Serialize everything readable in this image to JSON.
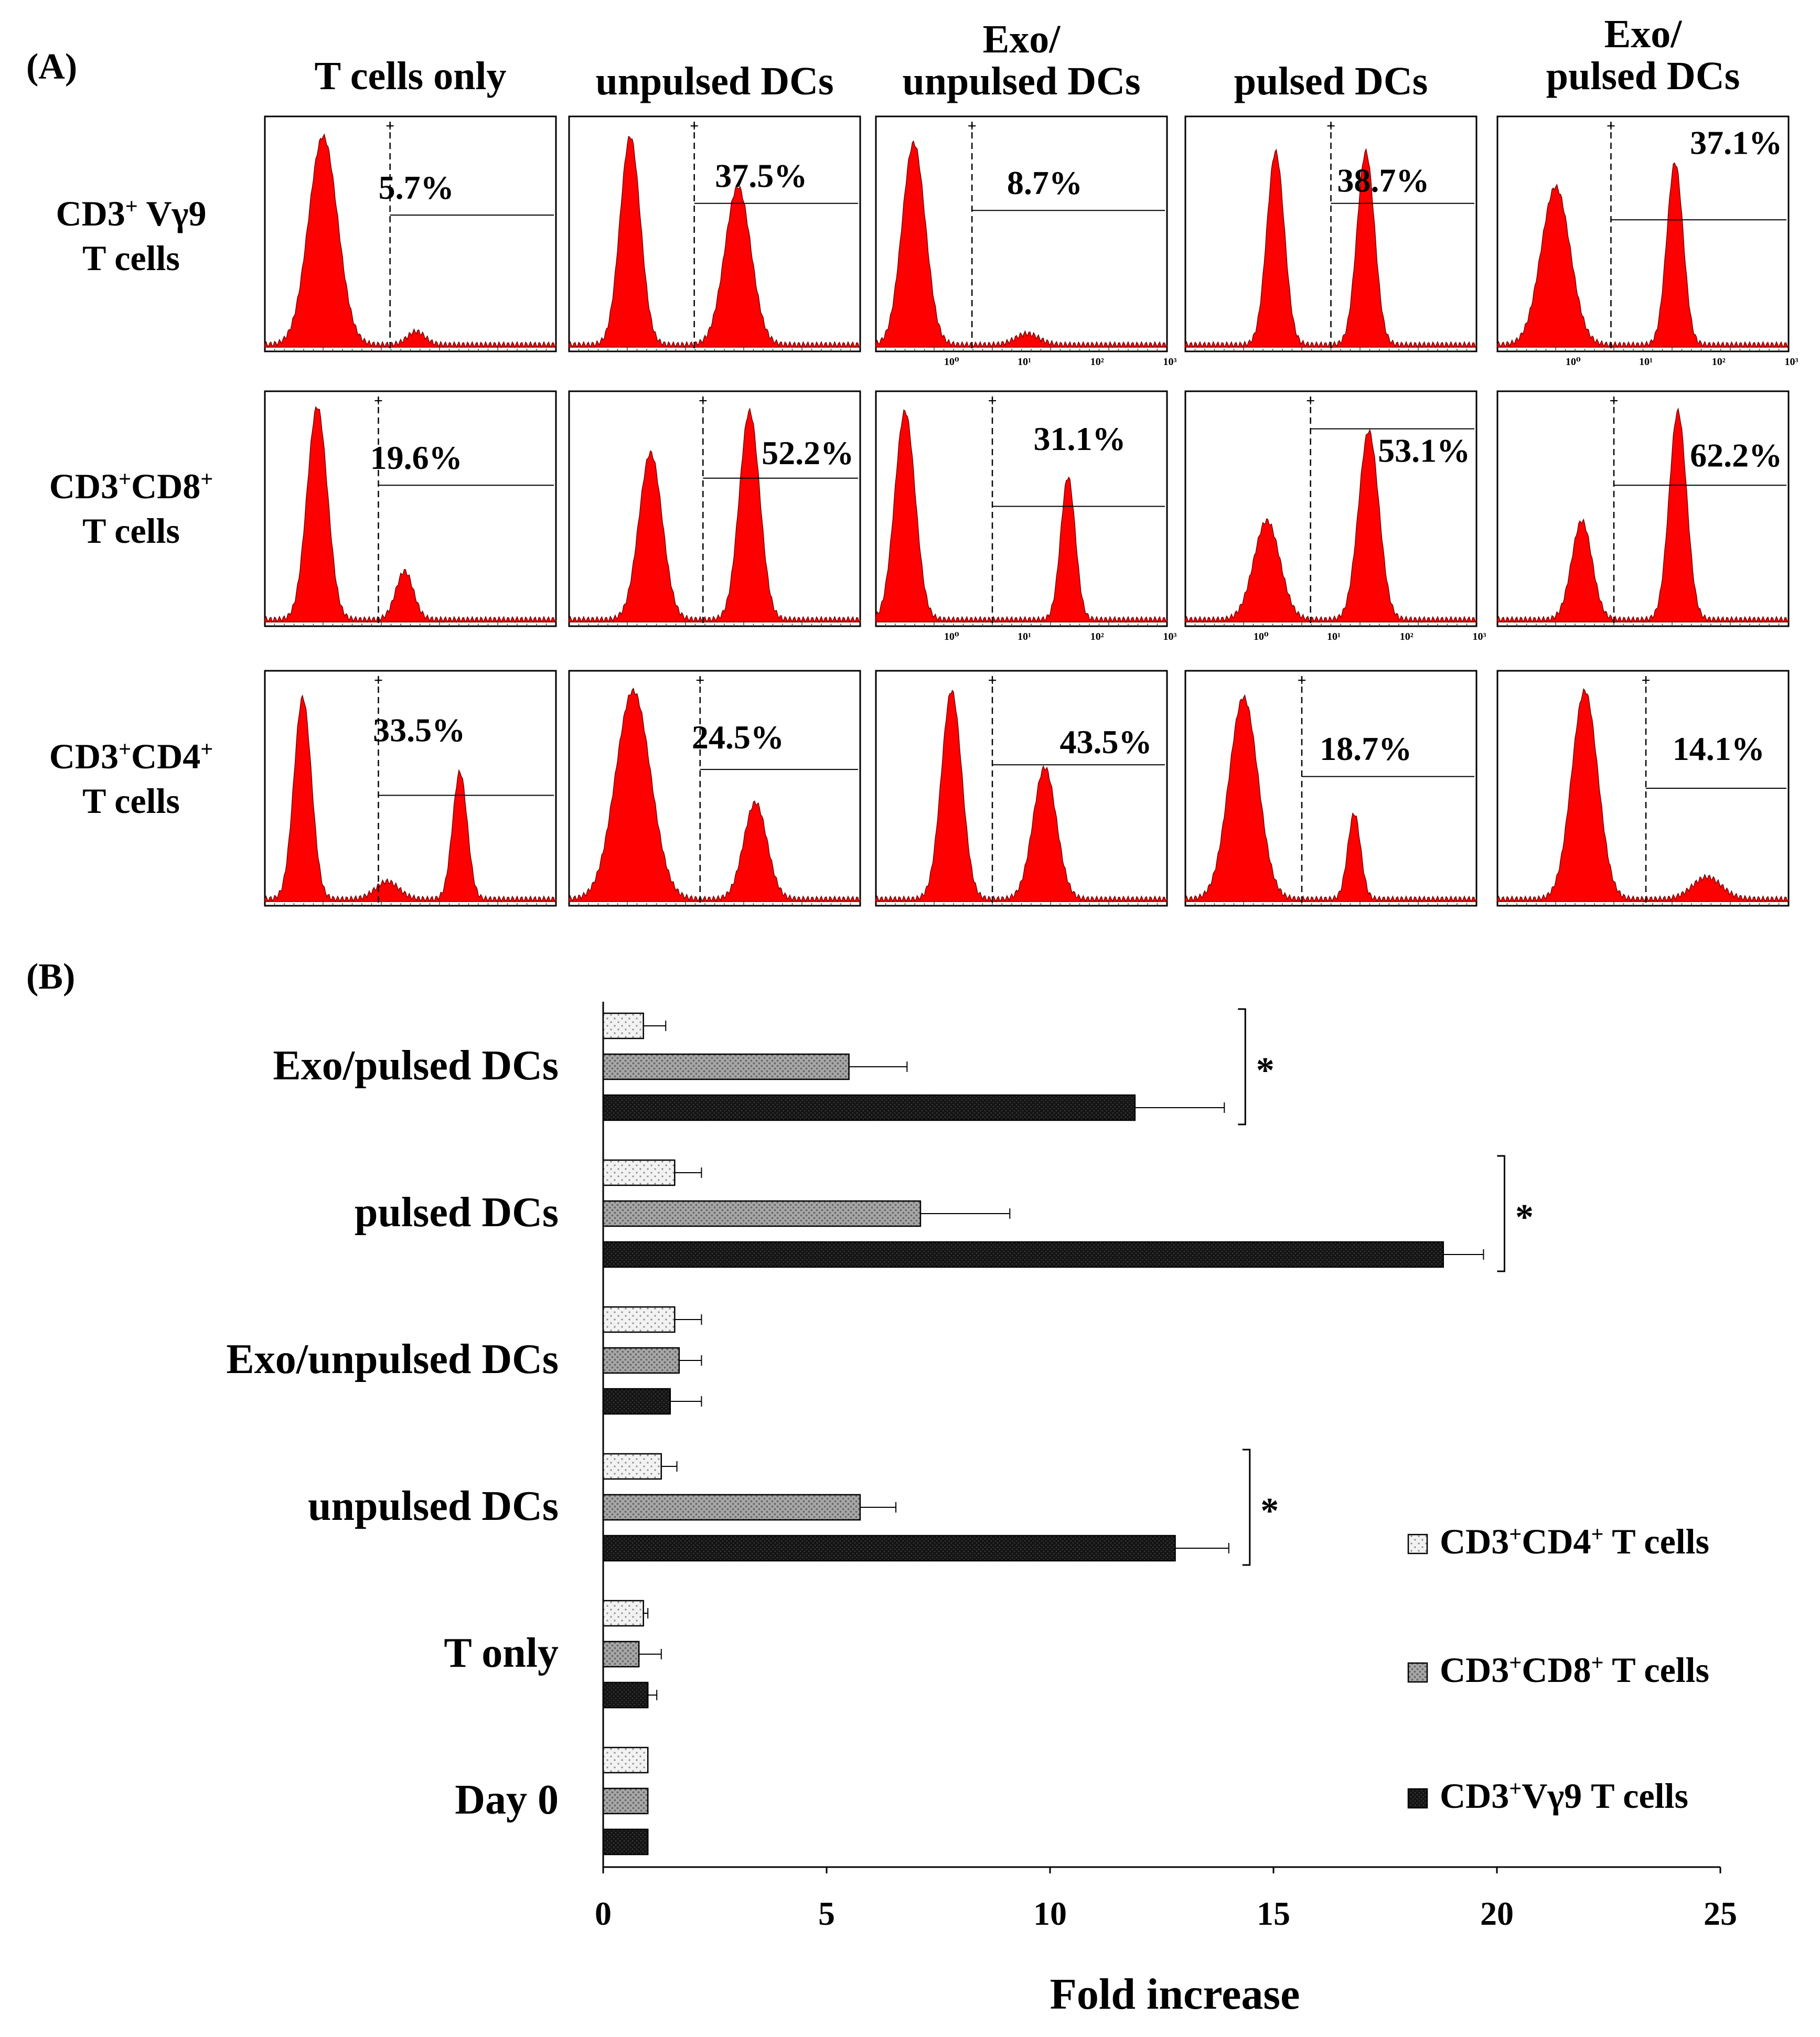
{
  "panel_a": {
    "label": "(A)",
    "columns": [
      "T cells only",
      "unpulsed DCs",
      "Exo/\nunpulsed DCs",
      "pulsed DCs",
      "Exo/\npulsed DCs"
    ],
    "rows": [
      {
        "label": "CD3+ Vγ9\nT cells",
        "percents": [
          "5.7%",
          "37.5%",
          "8.7%",
          "38.7%",
          "37.1%"
        ]
      },
      {
        "label": "CD3+CD8+\nT cells",
        "percents": [
          "19.6%",
          "52.2%",
          "31.1%",
          "53.1%",
          "62.2%"
        ]
      },
      {
        "label": "CD3+CD4+\nT cells",
        "percents": [
          "33.5%",
          "24.5%",
          "43.5%",
          "18.7%",
          "14.1%"
        ]
      }
    ],
    "histogram_color": "#ff0000",
    "axis_tick_labels": [
      "10⁰",
      "10¹",
      "10²",
      "10³"
    ]
  },
  "chart_data": {
    "type": "bar",
    "orientation": "horizontal",
    "panel_label": "(B)",
    "title": "",
    "xlabel": "Fold increase",
    "ylabel": "",
    "xlim": [
      0,
      25
    ],
    "xticks": [
      0,
      5,
      10,
      15,
      20,
      25
    ],
    "categories": [
      "Exo/pulsed DCs",
      "pulsed DCs",
      "Exo/unpulsed DCs",
      "unpulsed DCs",
      "T only",
      "Day 0"
    ],
    "series": [
      {
        "name": "CD3+CD4+ T cells",
        "pattern": "light-dots",
        "values": [
          0.9,
          1.6,
          1.6,
          1.3,
          0.9,
          1.0
        ],
        "errors": [
          0.5,
          0.6,
          0.6,
          0.35,
          0.1,
          0.0
        ]
      },
      {
        "name": "CD3+CD8+ T cells",
        "pattern": "grey",
        "values": [
          5.5,
          7.1,
          1.7,
          5.75,
          0.8,
          1.0
        ],
        "errors": [
          1.3,
          2.0,
          0.5,
          0.8,
          0.5,
          0.0
        ]
      },
      {
        "name": "CD3+Vγ9 T cells",
        "pattern": "black",
        "values": [
          11.9,
          18.8,
          1.5,
          12.8,
          1.0,
          1.0
        ],
        "errors": [
          2.0,
          0.9,
          0.7,
          1.2,
          0.2,
          0.0
        ]
      }
    ],
    "significance": [
      {
        "category": "Exo/pulsed DCs",
        "mark": "*"
      },
      {
        "category": "pulsed DCs",
        "mark": "*"
      },
      {
        "category": "unpulsed DCs",
        "mark": "*"
      }
    ],
    "legend_position": "bottom-right"
  }
}
